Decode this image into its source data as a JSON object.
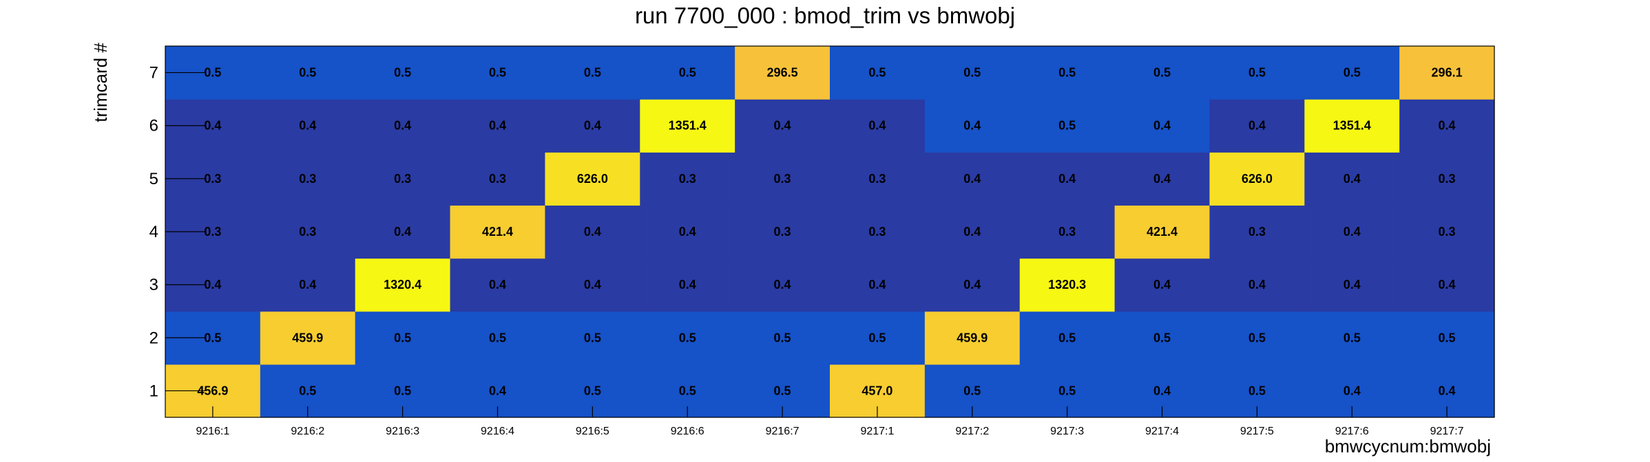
{
  "chart_data": {
    "type": "heatmap",
    "title": "run 7700_000 : bmod_trim vs bmwobj",
    "xlabel": "bmwcycnum:bmwobj",
    "ylabel": "trimcard #",
    "x_categories": [
      "9216:1",
      "9216:2",
      "9216:3",
      "9216:4",
      "9216:5",
      "9216:6",
      "9216:7",
      "9217:1",
      "9217:2",
      "9217:3",
      "9217:4",
      "9217:5",
      "9217:6",
      "9217:7"
    ],
    "y_categories": [
      "1",
      "2",
      "3",
      "4",
      "5",
      "6",
      "7"
    ],
    "value_labels": [
      [
        "456.9",
        "0.5",
        "0.5",
        "0.4",
        "0.5",
        "0.5",
        "0.5",
        "457.0",
        "0.5",
        "0.5",
        "0.4",
        "0.5",
        "0.4",
        "0.4"
      ],
      [
        "0.5",
        "459.9",
        "0.5",
        "0.5",
        "0.5",
        "0.5",
        "0.5",
        "0.5",
        "459.9",
        "0.5",
        "0.5",
        "0.5",
        "0.5",
        "0.5"
      ],
      [
        "0.4",
        "0.4",
        "1320.4",
        "0.4",
        "0.4",
        "0.4",
        "0.4",
        "0.4",
        "0.4",
        "1320.3",
        "0.4",
        "0.4",
        "0.4",
        "0.4"
      ],
      [
        "0.3",
        "0.3",
        "0.4",
        "421.4",
        "0.4",
        "0.4",
        "0.3",
        "0.3",
        "0.4",
        "0.3",
        "421.4",
        "0.3",
        "0.4",
        "0.3"
      ],
      [
        "0.3",
        "0.3",
        "0.3",
        "0.3",
        "626.0",
        "0.3",
        "0.3",
        "0.3",
        "0.4",
        "0.4",
        "0.4",
        "626.0",
        "0.4",
        "0.3"
      ],
      [
        "0.4",
        "0.4",
        "0.4",
        "0.4",
        "0.4",
        "1351.4",
        "0.4",
        "0.4",
        "0.4",
        "0.5",
        "0.4",
        "0.4",
        "1351.4",
        "0.4"
      ],
      [
        "0.5",
        "0.5",
        "0.5",
        "0.5",
        "0.5",
        "0.5",
        "296.5",
        "0.5",
        "0.5",
        "0.5",
        "0.5",
        "0.5",
        "0.5",
        "296.1"
      ]
    ],
    "cell_colors": [
      [
        "#f7cd30",
        "#1652c8",
        "#1652c8",
        "#1652c8",
        "#1652c8",
        "#1652c8",
        "#1652c8",
        "#f7cd30",
        "#1652c8",
        "#1652c8",
        "#1652c8",
        "#1652c8",
        "#1652c8",
        "#1652c8"
      ],
      [
        "#1652c8",
        "#f7cd30",
        "#1652c8",
        "#1652c8",
        "#1652c8",
        "#1652c8",
        "#1652c8",
        "#1652c8",
        "#f7cd30",
        "#1652c8",
        "#1652c8",
        "#1652c8",
        "#1652c8",
        "#1652c8"
      ],
      [
        "#2a3ba3",
        "#2a3ba3",
        "#f7f714",
        "#2a3ba3",
        "#2a3ba3",
        "#2a3ba3",
        "#2a3ba3",
        "#2a3ba3",
        "#2a3ba3",
        "#f7f714",
        "#2a3ba3",
        "#2a3ba3",
        "#2a3ba3",
        "#2a3ba3"
      ],
      [
        "#2a3ba3",
        "#2a3ba3",
        "#2a3ba3",
        "#f7cd30",
        "#2a3ba3",
        "#2a3ba3",
        "#2a3ba3",
        "#2a3ba3",
        "#2a3ba3",
        "#2a3ba3",
        "#f7cd30",
        "#2a3ba3",
        "#2a3ba3",
        "#2a3ba3"
      ],
      [
        "#2a3ba3",
        "#2a3ba3",
        "#2a3ba3",
        "#2a3ba3",
        "#f7e023",
        "#2a3ba3",
        "#2a3ba3",
        "#2a3ba3",
        "#2a3ba3",
        "#2a3ba3",
        "#2a3ba3",
        "#f7e023",
        "#2a3ba3",
        "#2a3ba3"
      ],
      [
        "#2a3ba3",
        "#2a3ba3",
        "#2a3ba3",
        "#2a3ba3",
        "#2a3ba3",
        "#f7f714",
        "#2a3ba3",
        "#2a3ba3",
        "#1652c8",
        "#1652c8",
        "#1652c8",
        "#2a3ba3",
        "#f7f714",
        "#2a3ba3"
      ],
      [
        "#1652c8",
        "#1652c8",
        "#1652c8",
        "#1652c8",
        "#1652c8",
        "#1652c8",
        "#f7c23a",
        "#1652c8",
        "#1652c8",
        "#1652c8",
        "#1652c8",
        "#1652c8",
        "#1652c8",
        "#f7c23a"
      ]
    ],
    "grid": false,
    "legend": "none"
  }
}
